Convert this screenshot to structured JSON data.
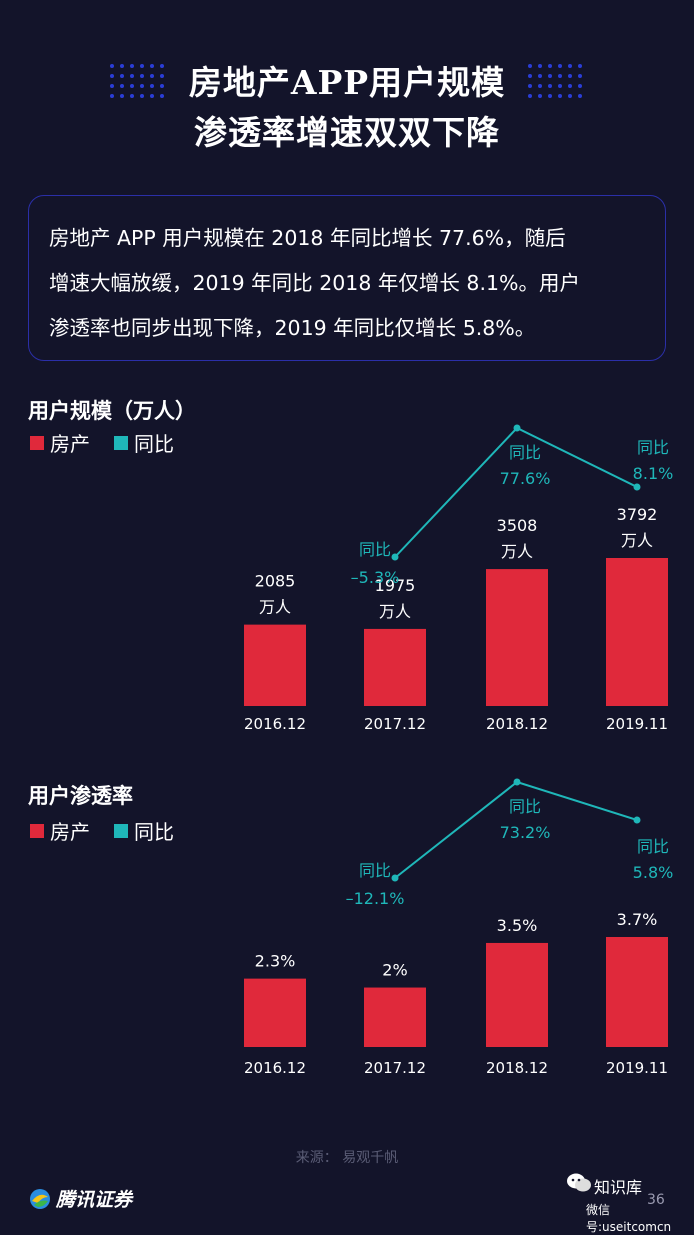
{
  "title": {
    "line1": "房地产APP用户规模",
    "line2": "渗透率增速双双下降"
  },
  "summary": {
    "line1": "房地产 APP 用户规模在 2018 年同比增长 77.6%，随后",
    "line2": "增速大幅放缓，2019 年同比 2018 年仅增长 8.1%。用户",
    "line3": "渗透率也同步出现下降，2019 年同比仅增长 5.8%。"
  },
  "legend": {
    "bar": "房产",
    "line": "同比"
  },
  "colors": {
    "bar": "#e0293b",
    "line": "#1fb7b9",
    "background": "#13142a",
    "box_border": "#2b2fa8"
  },
  "chart_data": [
    {
      "type": "bar",
      "title": "用户规模（万人）",
      "categories": [
        "2016.12",
        "2017.12",
        "2018.12",
        "2019.11"
      ],
      "values": [
        2085,
        1975,
        3508,
        3792
      ],
      "value_labels": [
        [
          "2085",
          "万人"
        ],
        [
          "1975",
          "万人"
        ],
        [
          "3508",
          "万人"
        ],
        [
          "3792",
          "万人"
        ]
      ],
      "yoy": {
        "values": [
          null,
          -5.3,
          77.6,
          8.1
        ],
        "labels": [
          null,
          [
            "同比",
            "–5.3%"
          ],
          [
            "同比",
            "77.6%"
          ],
          [
            "同比",
            "8.1%"
          ]
        ]
      }
    },
    {
      "type": "bar",
      "title": "用户渗透率",
      "categories": [
        "2016.12",
        "2017.12",
        "2018.12",
        "2019.11"
      ],
      "values": [
        2.3,
        2.0,
        3.5,
        3.7
      ],
      "value_labels": [
        [
          "2.3%"
        ],
        [
          "2%"
        ],
        [
          "3.5%"
        ],
        [
          "3.7%"
        ]
      ],
      "yoy": {
        "values": [
          null,
          -12.1,
          73.2,
          5.8
        ],
        "labels": [
          null,
          [
            "同比",
            "–12.1%"
          ],
          [
            "同比",
            "73.2%"
          ],
          [
            "同比",
            "5.8%"
          ]
        ]
      }
    }
  ],
  "footer": {
    "source": "来源： 易观千帆",
    "brand": "腾讯证券",
    "watermark": "知识库",
    "watermark_id": "微信号:useitcomcn",
    "page": "36"
  }
}
